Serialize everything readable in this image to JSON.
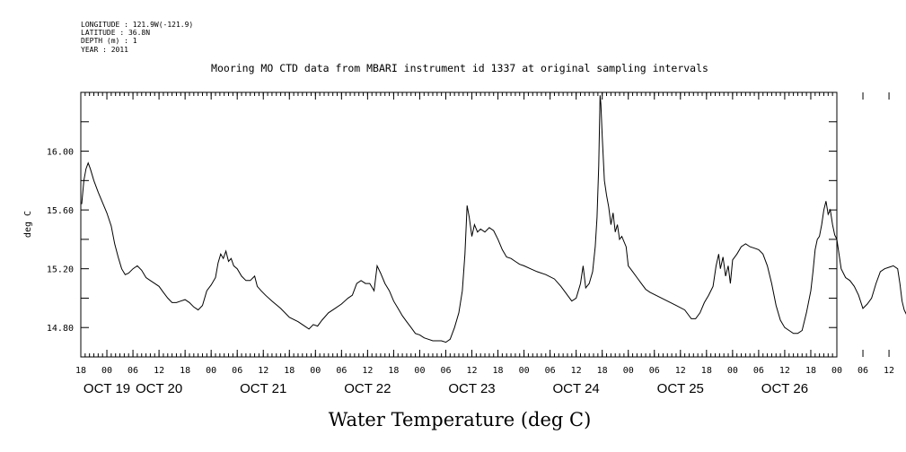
{
  "header": {
    "longitude": "LONGITUDE : 121.9W(-121.9)",
    "latitude": "LATITUDE : 36.8N",
    "depth": "DEPTH (m) : 1",
    "year": "YEAR : 2011"
  },
  "chart_data": {
    "type": "line",
    "title": "Mooring MO CTD data from MBARI instrument id 1337 at original sampling intervals",
    "xlabel": "Water Temperature (deg C)",
    "ylabel": "deg C",
    "ylim": [
      14.6,
      16.4
    ],
    "xlim_hours": [
      -6,
      168
    ],
    "y_ticks": [
      "14.80",
      "15.20",
      "15.60",
      "16.00"
    ],
    "x_hour_labels": [
      "18",
      "00",
      "06",
      "12",
      "18",
      "00",
      "06",
      "12",
      "18",
      "00",
      "06",
      "12",
      "18",
      "00",
      "06",
      "12",
      "18",
      "00",
      "06",
      "12",
      "18",
      "00",
      "06",
      "12",
      "18",
      "00",
      "06",
      "12",
      "18",
      "00",
      "06",
      "12",
      "18"
    ],
    "x_day_labels": [
      "OCT 19",
      "OCT 20",
      "OCT 21",
      "OCT 22",
      "OCT 23",
      "OCT 24",
      "OCT 25",
      "OCT 26"
    ],
    "x_day_hours": [
      0,
      12,
      36,
      60,
      84,
      108,
      132,
      156
    ],
    "grid": false,
    "series": [
      {
        "points": [
          [
            -5.8,
            15.64
          ],
          [
            -5.3,
            15.8
          ],
          [
            -4.8,
            15.88
          ],
          [
            -4.3,
            15.92
          ],
          [
            -3.8,
            15.88
          ],
          [
            -3,
            15.8
          ],
          [
            -2,
            15.72
          ],
          [
            -1,
            15.65
          ],
          [
            0,
            15.58
          ],
          [
            1,
            15.49
          ],
          [
            1.8,
            15.37
          ],
          [
            2.6,
            15.28
          ],
          [
            3.4,
            15.2
          ],
          [
            4.2,
            15.16
          ],
          [
            5,
            15.17
          ],
          [
            6,
            15.2
          ],
          [
            7,
            15.22
          ],
          [
            8,
            15.19
          ],
          [
            9,
            15.14
          ],
          [
            10,
            15.12
          ],
          [
            11,
            15.1
          ],
          [
            12,
            15.08
          ],
          [
            13,
            15.04
          ],
          [
            14,
            15.0
          ],
          [
            15,
            14.97
          ],
          [
            16,
            14.97
          ],
          [
            17,
            14.98
          ],
          [
            18,
            14.99
          ],
          [
            19,
            14.97
          ],
          [
            20,
            14.94
          ],
          [
            21,
            14.92
          ],
          [
            22,
            14.95
          ],
          [
            23,
            15.05
          ],
          [
            24,
            15.09
          ],
          [
            25,
            15.14
          ],
          [
            25.6,
            15.24
          ],
          [
            26.2,
            15.3
          ],
          [
            26.8,
            15.27
          ],
          [
            27.4,
            15.32
          ],
          [
            28,
            15.25
          ],
          [
            28.6,
            15.27
          ],
          [
            29.2,
            15.22
          ],
          [
            30,
            15.2
          ],
          [
            31,
            15.15
          ],
          [
            32,
            15.12
          ],
          [
            33,
            15.12
          ],
          [
            34,
            15.15
          ],
          [
            34.6,
            15.08
          ],
          [
            35.5,
            15.05
          ],
          [
            36.5,
            15.02
          ],
          [
            38,
            14.98
          ],
          [
            40,
            14.93
          ],
          [
            42,
            14.87
          ],
          [
            44,
            14.84
          ],
          [
            45.5,
            14.81
          ],
          [
            46.5,
            14.79
          ],
          [
            47.5,
            14.82
          ],
          [
            48.5,
            14.81
          ],
          [
            49.5,
            14.85
          ],
          [
            51,
            14.9
          ],
          [
            52.5,
            14.93
          ],
          [
            54,
            14.96
          ],
          [
            55.5,
            15.0
          ],
          [
            56.5,
            15.02
          ],
          [
            57.5,
            15.1
          ],
          [
            58.5,
            15.12
          ],
          [
            59.5,
            15.1
          ],
          [
            60.5,
            15.1
          ],
          [
            61.5,
            15.05
          ],
          [
            62.2,
            15.22
          ],
          [
            63,
            15.17
          ],
          [
            64,
            15.1
          ],
          [
            65,
            15.05
          ],
          [
            66,
            14.98
          ],
          [
            67,
            14.93
          ],
          [
            68,
            14.88
          ],
          [
            69,
            14.84
          ],
          [
            70,
            14.8
          ],
          [
            71,
            14.76
          ],
          [
            72,
            14.75
          ],
          [
            73,
            14.73
          ],
          [
            74,
            14.72
          ],
          [
            75,
            14.71
          ],
          [
            76,
            14.71
          ],
          [
            77,
            14.71
          ],
          [
            78,
            14.7
          ],
          [
            79,
            14.72
          ],
          [
            80,
            14.8
          ],
          [
            81,
            14.9
          ],
          [
            81.8,
            15.05
          ],
          [
            82.4,
            15.3
          ],
          [
            82.9,
            15.63
          ],
          [
            83.4,
            15.55
          ],
          [
            84,
            15.42
          ],
          [
            84.6,
            15.5
          ],
          [
            85.3,
            15.45
          ],
          [
            86,
            15.47
          ],
          [
            87,
            15.45
          ],
          [
            88,
            15.48
          ],
          [
            89,
            15.46
          ],
          [
            90,
            15.4
          ],
          [
            91,
            15.33
          ],
          [
            92,
            15.28
          ],
          [
            93,
            15.27
          ],
          [
            94,
            15.25
          ],
          [
            95,
            15.23
          ],
          [
            96,
            15.22
          ],
          [
            97.5,
            15.2
          ],
          [
            99,
            15.18
          ],
          [
            101,
            15.16
          ],
          [
            103,
            15.13
          ],
          [
            104.5,
            15.08
          ],
          [
            106,
            15.02
          ],
          [
            107,
            14.98
          ],
          [
            108,
            15.0
          ],
          [
            109,
            15.1
          ],
          [
            109.6,
            15.22
          ],
          [
            110.2,
            15.07
          ],
          [
            111,
            15.1
          ],
          [
            111.8,
            15.18
          ],
          [
            112.4,
            15.35
          ],
          [
            112.8,
            15.55
          ],
          [
            113.2,
            15.9
          ],
          [
            113.5,
            16.38
          ],
          [
            113.7,
            16.32
          ],
          [
            114,
            16.1
          ],
          [
            114.5,
            15.8
          ],
          [
            115,
            15.7
          ],
          [
            115.5,
            15.62
          ],
          [
            116,
            15.5
          ],
          [
            116.5,
            15.58
          ],
          [
            117,
            15.45
          ],
          [
            117.5,
            15.5
          ],
          [
            118,
            15.4
          ],
          [
            118.5,
            15.42
          ],
          [
            119.5,
            15.35
          ],
          [
            120,
            15.22
          ],
          [
            121,
            15.18
          ],
          [
            122,
            15.14
          ],
          [
            123,
            15.1
          ],
          [
            124,
            15.06
          ],
          [
            125,
            15.04
          ],
          [
            127,
            15.01
          ],
          [
            129,
            14.98
          ],
          [
            131,
            14.95
          ],
          [
            133,
            14.92
          ],
          [
            134.5,
            14.86
          ],
          [
            135.5,
            14.86
          ],
          [
            136.5,
            14.9
          ],
          [
            137.5,
            14.97
          ],
          [
            138.5,
            15.02
          ],
          [
            139.5,
            15.08
          ],
          [
            140.2,
            15.22
          ],
          [
            140.8,
            15.3
          ],
          [
            141.2,
            15.2
          ],
          [
            141.8,
            15.28
          ],
          [
            142.4,
            15.15
          ],
          [
            143,
            15.22
          ],
          [
            143.5,
            15.1
          ],
          [
            144,
            15.26
          ],
          [
            145,
            15.3
          ],
          [
            146,
            15.35
          ],
          [
            147,
            15.37
          ],
          [
            148,
            15.35
          ],
          [
            149,
            15.34
          ],
          [
            150,
            15.33
          ],
          [
            151,
            15.3
          ],
          [
            152,
            15.22
          ],
          [
            153,
            15.1
          ],
          [
            154,
            14.95
          ],
          [
            155,
            14.85
          ],
          [
            156,
            14.8
          ],
          [
            157,
            14.78
          ],
          [
            158,
            14.76
          ],
          [
            159,
            14.76
          ],
          [
            160,
            14.78
          ],
          [
            161,
            14.9
          ],
          [
            162,
            15.05
          ],
          [
            162.5,
            15.18
          ],
          [
            163,
            15.33
          ],
          [
            163.5,
            15.4
          ],
          [
            164,
            15.42
          ],
          [
            164.5,
            15.5
          ],
          [
            165,
            15.6
          ],
          [
            165.5,
            15.66
          ],
          [
            166,
            15.57
          ],
          [
            166.5,
            15.6
          ],
          [
            167,
            15.5
          ],
          [
            167.5,
            15.43
          ],
          [
            168,
            15.4
          ],
          [
            168.5,
            15.3
          ],
          [
            169,
            15.2
          ],
          [
            170,
            15.14
          ],
          [
            171,
            15.12
          ],
          [
            172,
            15.08
          ],
          [
            173,
            15.02
          ],
          [
            174,
            14.93
          ],
          [
            175,
            14.96
          ],
          [
            176,
            15.0
          ],
          [
            177,
            15.1
          ],
          [
            178,
            15.18
          ],
          [
            179,
            15.2
          ],
          [
            180,
            15.21
          ],
          [
            181,
            15.22
          ],
          [
            182,
            15.2
          ],
          [
            182.5,
            15.1
          ],
          [
            183,
            14.98
          ],
          [
            183.5,
            14.92
          ],
          [
            184,
            14.89
          ],
          [
            184.8,
            14.92
          ],
          [
            185.3,
            15.08
          ],
          [
            186,
            15.09
          ],
          [
            187,
            15.1
          ],
          [
            187.8,
            15.16
          ],
          [
            188.5,
            15.18
          ],
          [
            189.5,
            15.2
          ]
        ]
      }
    ]
  }
}
